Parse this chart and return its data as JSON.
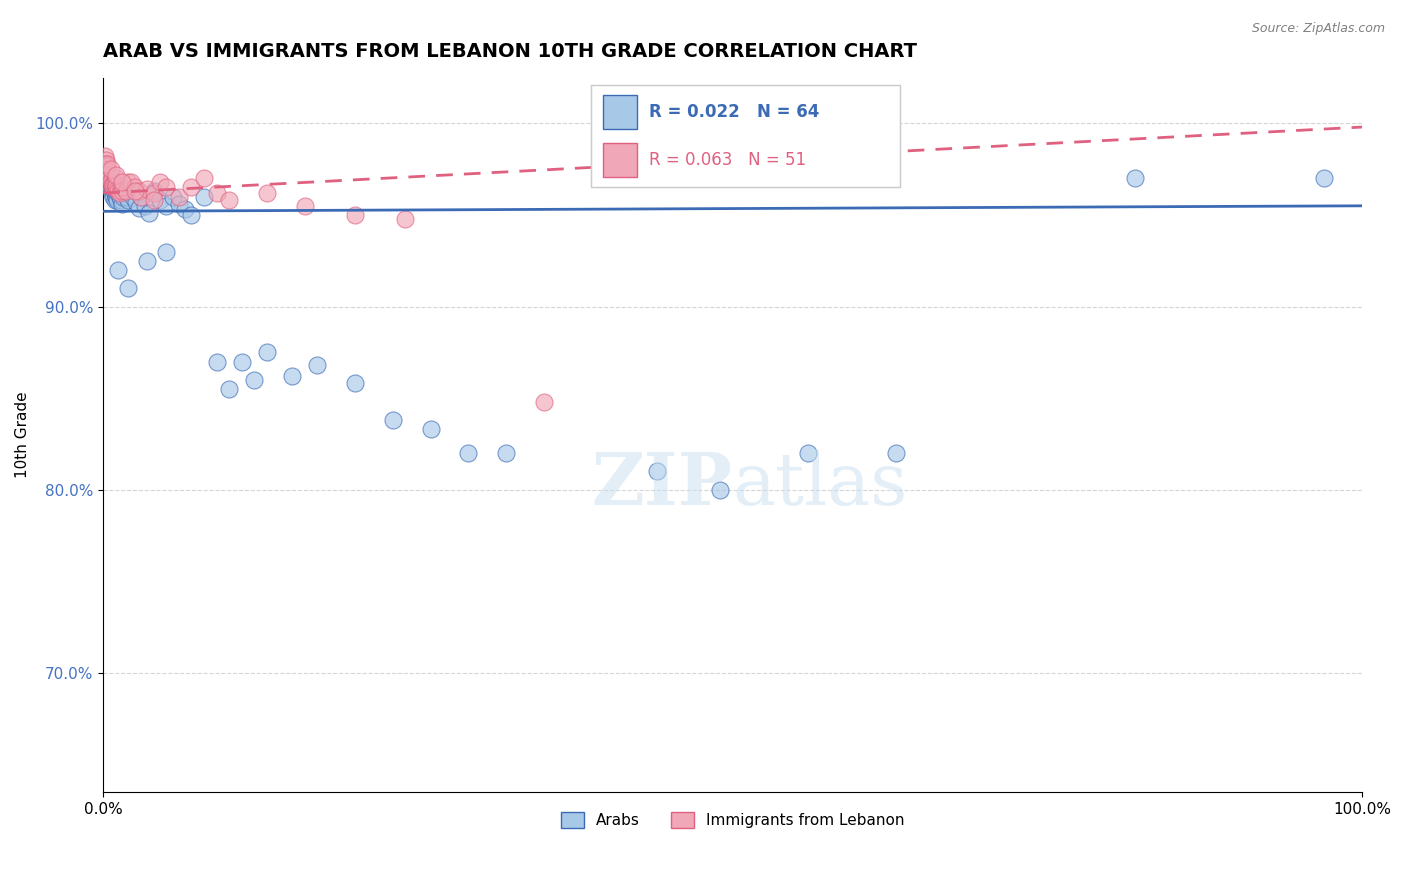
{
  "title": "ARAB VS IMMIGRANTS FROM LEBANON 10TH GRADE CORRELATION CHART",
  "source": "Source: ZipAtlas.com",
  "xlabel": "",
  "ylabel": "10th Grade",
  "xlim": [
    0,
    1.0
  ],
  "ylim": [
    0.635,
    1.025
  ],
  "yticks": [
    0.7,
    0.8,
    0.9,
    1.0
  ],
  "ytick_labels": [
    "70.0%",
    "80.0%",
    "90.0%",
    "100.0%"
  ],
  "xticks": [
    0.0,
    1.0
  ],
  "xtick_labels": [
    "0.0%",
    "100.0%"
  ],
  "arab_color": "#A8C8E8",
  "leb_color": "#F0A8B8",
  "arab_line_color": "#3B6BB5",
  "leb_line_color": "#E06080",
  "background_color": "#FFFFFF",
  "grid_color": "#CCCCCC",
  "title_fontsize": 14,
  "axis_fontsize": 11,
  "tick_fontsize": 11,
  "arab_x": [
    0.002,
    0.003,
    0.003,
    0.004,
    0.004,
    0.005,
    0.005,
    0.006,
    0.006,
    0.007,
    0.007,
    0.008,
    0.008,
    0.009,
    0.009,
    0.01,
    0.01,
    0.011,
    0.012,
    0.013,
    0.014,
    0.015,
    0.016,
    0.017,
    0.018,
    0.019,
    0.02,
    0.022,
    0.024,
    0.026,
    0.028,
    0.03,
    0.033,
    0.036,
    0.04,
    0.045,
    0.05,
    0.055,
    0.06,
    0.065,
    0.07,
    0.08,
    0.09,
    0.1,
    0.11,
    0.12,
    0.13,
    0.15,
    0.17,
    0.2,
    0.23,
    0.26,
    0.29,
    0.32,
    0.44,
    0.49,
    0.56,
    0.63,
    0.82,
    0.97,
    0.012,
    0.02,
    0.035,
    0.05
  ],
  "arab_y": [
    0.975,
    0.972,
    0.97,
    0.968,
    0.972,
    0.966,
    0.97,
    0.964,
    0.968,
    0.962,
    0.966,
    0.96,
    0.964,
    0.958,
    0.962,
    0.96,
    0.963,
    0.958,
    0.962,
    0.96,
    0.958,
    0.956,
    0.96,
    0.962,
    0.964,
    0.96,
    0.958,
    0.963,
    0.96,
    0.957,
    0.954,
    0.96,
    0.955,
    0.951,
    0.963,
    0.958,
    0.955,
    0.96,
    0.956,
    0.953,
    0.95,
    0.96,
    0.87,
    0.855,
    0.87,
    0.86,
    0.875,
    0.862,
    0.868,
    0.858,
    0.838,
    0.833,
    0.82,
    0.82,
    0.81,
    0.8,
    0.82,
    0.82,
    0.97,
    0.97,
    0.92,
    0.91,
    0.925,
    0.93
  ],
  "leb_x": [
    0.001,
    0.002,
    0.002,
    0.003,
    0.003,
    0.004,
    0.004,
    0.005,
    0.005,
    0.006,
    0.006,
    0.007,
    0.007,
    0.008,
    0.008,
    0.009,
    0.009,
    0.01,
    0.01,
    0.011,
    0.012,
    0.013,
    0.014,
    0.015,
    0.016,
    0.018,
    0.02,
    0.022,
    0.025,
    0.028,
    0.03,
    0.035,
    0.04,
    0.045,
    0.05,
    0.06,
    0.07,
    0.08,
    0.09,
    0.1,
    0.13,
    0.16,
    0.2,
    0.24,
    0.003,
    0.006,
    0.01,
    0.015,
    0.025,
    0.04,
    0.35
  ],
  "leb_y": [
    0.982,
    0.98,
    0.978,
    0.977,
    0.975,
    0.974,
    0.972,
    0.971,
    0.97,
    0.969,
    0.968,
    0.967,
    0.966,
    0.965,
    0.967,
    0.966,
    0.968,
    0.97,
    0.966,
    0.964,
    0.963,
    0.962,
    0.965,
    0.963,
    0.965,
    0.963,
    0.968,
    0.968,
    0.965,
    0.963,
    0.96,
    0.964,
    0.962,
    0.968,
    0.965,
    0.96,
    0.965,
    0.97,
    0.962,
    0.958,
    0.962,
    0.955,
    0.95,
    0.948,
    0.978,
    0.975,
    0.972,
    0.968,
    0.963,
    0.958,
    0.848
  ],
  "arab_line_start_y": 0.952,
  "arab_line_end_y": 0.955,
  "leb_line_start_y": 0.962,
  "leb_line_end_y": 0.998
}
